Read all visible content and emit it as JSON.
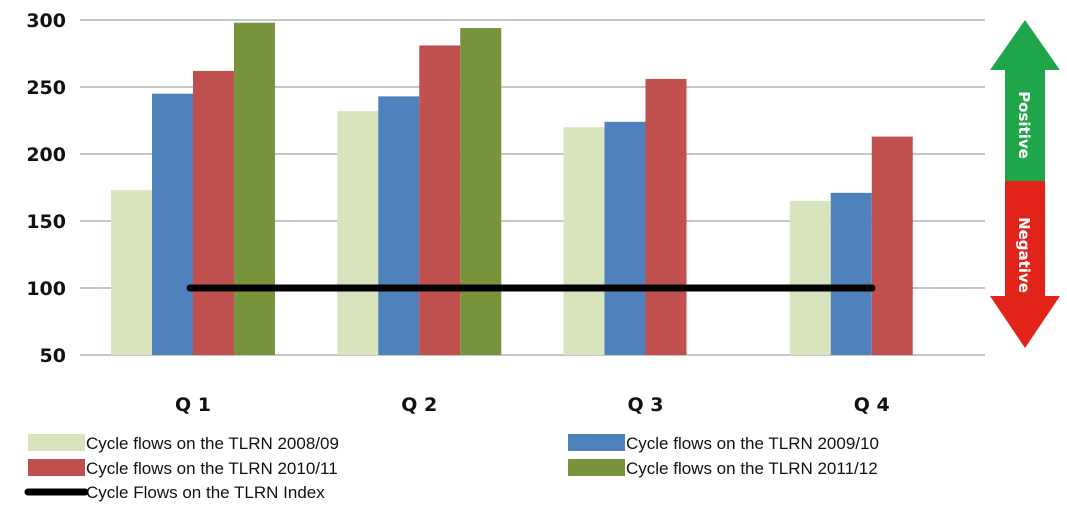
{
  "chart_data": {
    "type": "bar",
    "categories": [
      "Q 1",
      "Q 2",
      "Q 3",
      "Q 4"
    ],
    "series": [
      {
        "name": "Cycle flows on the TLRN 2008/09",
        "color": "#d7e4bd",
        "values": [
          173,
          232,
          220,
          165
        ]
      },
      {
        "name": "Cycle flows on the TLRN 2009/10",
        "color": "#4f81bd",
        "values": [
          245,
          243,
          224,
          171
        ]
      },
      {
        "name": "Cycle flows on the TLRN 2010/11",
        "color": "#c0504d",
        "values": [
          262,
          281,
          256,
          213
        ]
      },
      {
        "name": "Cycle flows on the TLRN 2011/12",
        "color": "#77933c",
        "values": [
          298,
          294,
          null,
          null
        ]
      }
    ],
    "index_line": {
      "name": "Cycle Flows on the TLRN Index",
      "value": 100,
      "color": "#000000"
    },
    "yticks": [
      50,
      100,
      150,
      200,
      250,
      300
    ],
    "ylim": [
      50,
      300
    ],
    "grid": true,
    "legend_position": "bottom",
    "indicator": {
      "positive_label": "Positive",
      "negative_label": "Negative",
      "positive_color": "#1fa64a",
      "negative_color": "#e2231a"
    }
  }
}
